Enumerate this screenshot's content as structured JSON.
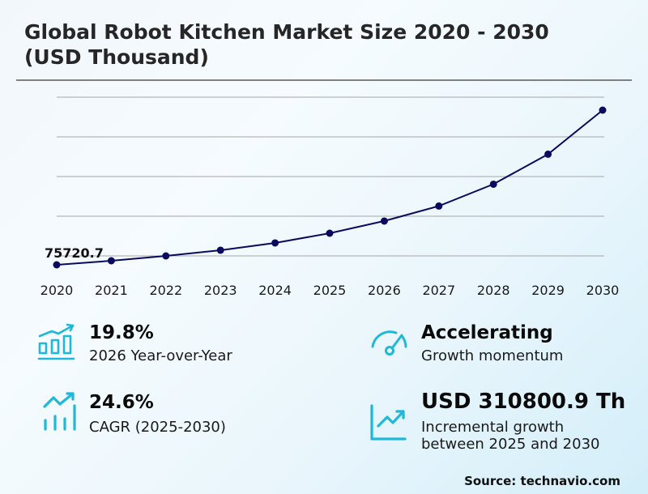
{
  "header": {
    "title_line1": "Global Robot Kitchen Market Size 2020 - 2030",
    "title_line2": "(USD Thousand)"
  },
  "chart_data": {
    "type": "line",
    "title": "Global Robot Kitchen Market Size 2020 - 2030 (USD Thousand)",
    "xlabel": "",
    "ylabel": "USD Thousand",
    "categories": [
      "2020",
      "2021",
      "2022",
      "2023",
      "2024",
      "2025",
      "2026",
      "2027",
      "2028",
      "2029",
      "2030"
    ],
    "series": [
      {
        "name": "Market Size",
        "color": "#0b0b5e",
        "values": [
          75720.7,
          85950,
          98220,
          112540,
          130950,
          155470,
          186250,
          224100,
          279300,
          355000,
          466270
        ]
      }
    ],
    "annotations": [
      {
        "x": "2020",
        "text": "75720.7"
      }
    ],
    "grid": true,
    "gridlines": 5,
    "y_axis_labels_visible": false,
    "legend": "none"
  },
  "kpis": [
    {
      "value": "19.8%",
      "label": "2026 Year-over-Year",
      "icon": "bar-chart-growth-icon"
    },
    {
      "value": "24.6%",
      "label": "CAGR (2025-2030)",
      "icon": "trend-bars-icon"
    },
    {
      "value": "Accelerating",
      "label": "Growth momentum",
      "icon": "speedometer-icon"
    },
    {
      "value": "USD 310800.9 Th",
      "label_line1": "Incremental growth",
      "label_line2": "between 2025 and 2030",
      "icon": "line-chart-growth-icon"
    }
  ],
  "colors": {
    "line": "#0b0b5e",
    "icon": "#1fb8d8",
    "grid": "#a6a6a6"
  },
  "footer": {
    "source": "Source: technavio.com"
  }
}
